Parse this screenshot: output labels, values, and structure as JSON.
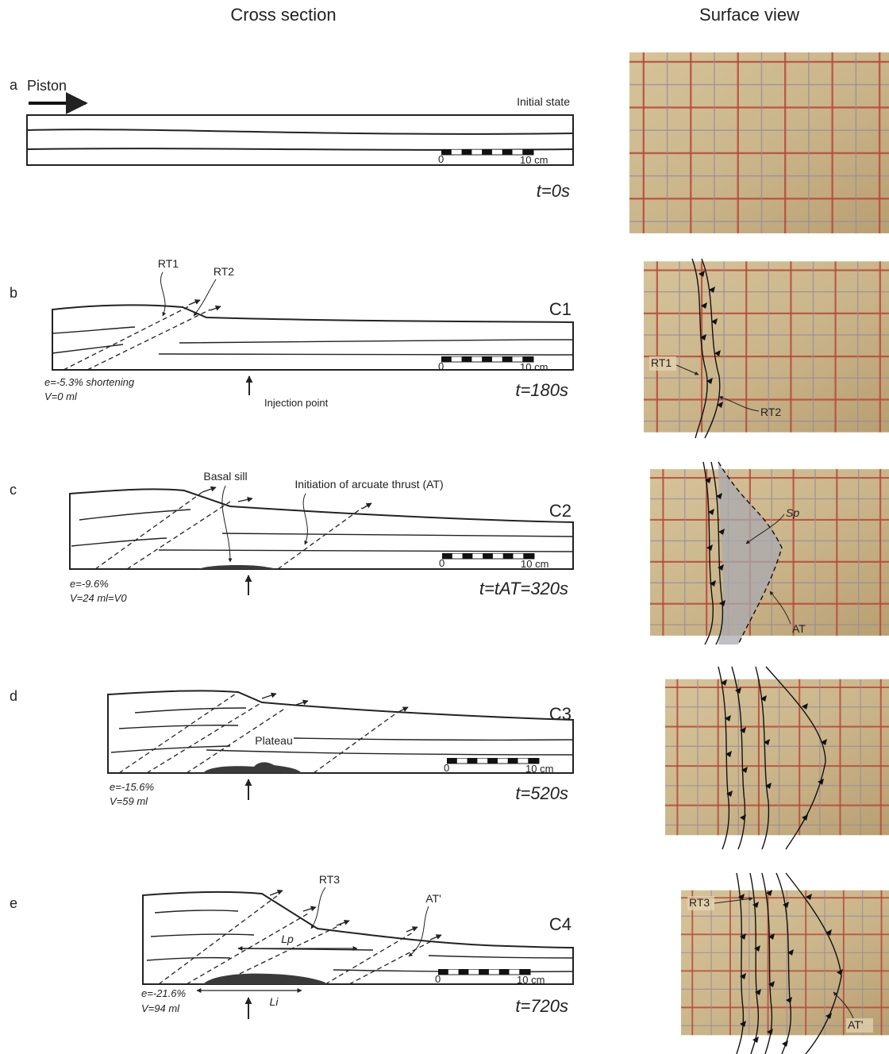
{
  "headers": {
    "cross_section": "Cross section",
    "surface_view": "Surface view"
  },
  "panels": [
    {
      "letter": "a",
      "time": "t=0s",
      "stage": "",
      "piston": "Piston",
      "state": "Initial state",
      "scale_0": "0",
      "scale_10": "10 cm"
    },
    {
      "letter": "b",
      "time": "t=180s",
      "stage": "C1",
      "shortening": "e=-5.3% shortening",
      "volume": "V=0 ml",
      "injection": "Injection point",
      "rt1": "RT1",
      "rt2": "RT2",
      "scale_0": "0",
      "scale_10": "10 cm",
      "surf_rt1": "RT1",
      "surf_rt2": "RT2"
    },
    {
      "letter": "c",
      "time": "t=tAT=320s",
      "stage": "C2",
      "shortening": "e=-9.6%",
      "volume": "V=24 ml=V0",
      "basal_sill": "Basal sill",
      "arcuate": "Initiation of arcuate thrust (AT)",
      "scale_0": "0",
      "scale_10": "10 cm",
      "surf_sp": "Sp",
      "surf_at": "AT"
    },
    {
      "letter": "d",
      "time": "t=520s",
      "stage": "C3",
      "shortening": "e=-15.6%",
      "volume": "V=59 ml",
      "plateau": "Plateau",
      "scale_0": "0",
      "scale_10": "10 cm"
    },
    {
      "letter": "e",
      "time": "t=720s",
      "stage": "C4",
      "shortening": "e=-21.6%",
      "volume": "V=94 ml",
      "rt3": "RT3",
      "at_prime": "AT'",
      "lp": "Lp",
      "li": "Li",
      "scale_0": "0",
      "scale_10": "10 cm",
      "surf_rt3": "RT3",
      "surf_at_prime": "AT'"
    }
  ],
  "colors": {
    "photo_bg": "#c9b488",
    "grid_red": "#b84a3a",
    "sill": "#3a3a3a",
    "sp_fill": "#a9a9b0"
  }
}
